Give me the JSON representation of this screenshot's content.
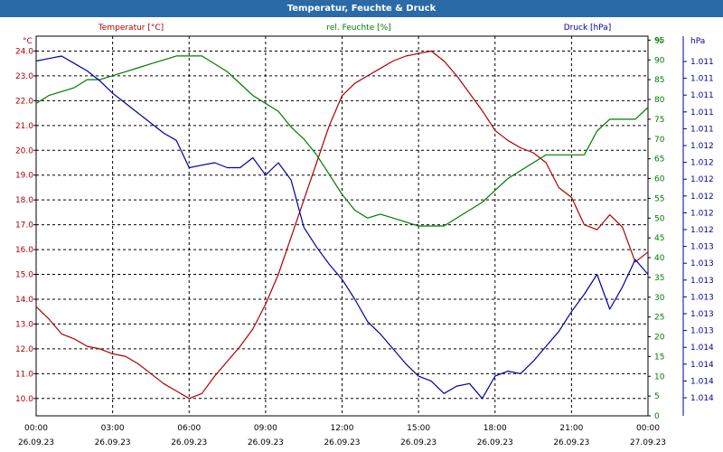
{
  "window": {
    "title": "Temperatur, Feuchte & Druck"
  },
  "chart_data": {
    "type": "line",
    "title": "Temperatur, Feuchte & Druck",
    "colors": {
      "temperature": "#b00000",
      "humidity": "#007a00",
      "pressure": "#0000a0",
      "grid": "#000000",
      "title_bar": "#2a6aa6"
    },
    "grid": true,
    "x_ticks": [
      {
        "time": "00:00",
        "date": "26.09.23"
      },
      {
        "time": "03:00",
        "date": "26.09.23"
      },
      {
        "time": "06:00",
        "date": "26.09.23"
      },
      {
        "time": "09:00",
        "date": "26.09.23"
      },
      {
        "time": "12:00",
        "date": "26.09.23"
      },
      {
        "time": "15:00",
        "date": "26.09.23"
      },
      {
        "time": "18:00",
        "date": "26.09.23"
      },
      {
        "time": "21:00",
        "date": "26.09.23"
      },
      {
        "time": "00:00",
        "date": "27.09.23"
      }
    ],
    "xlim_hours": [
      0,
      24
    ],
    "axes": {
      "left": {
        "label": "Temperatur [°C]",
        "unit": "°C",
        "ylim": [
          9.3,
          24.6
        ],
        "ticks": [
          "10.0",
          "11.0",
          "12.0",
          "13.0",
          "14.0",
          "15.0",
          "16.0",
          "17.0",
          "18.0",
          "19.0",
          "20.0",
          "21.0",
          "22.0",
          "23.0",
          "24.0"
        ]
      },
      "right1": {
        "label": "rel. Feuchte [%]",
        "unit": "%",
        "ylim": [
          0,
          96
        ],
        "ticks": [
          "0",
          "5",
          "10",
          "15",
          "20",
          "25",
          "30",
          "35",
          "40",
          "45",
          "50",
          "55",
          "60",
          "65",
          "70",
          "75",
          "80",
          "85",
          "90",
          "95"
        ]
      },
      "right2": {
        "label": "Druck [hPa]",
        "unit": "hPa",
        "ticks": [
          "1.011",
          "1.011",
          "1.011",
          "1.011",
          "1.011",
          "1.012",
          "1.012",
          "1.012",
          "1.012",
          "1.012",
          "1.012",
          "1.013",
          "1.013",
          "1.013",
          "1.013",
          "1.013",
          "1.013",
          "1.014",
          "1.014",
          "1.014",
          "1.014"
        ]
      }
    },
    "series": [
      {
        "name": "Temperatur [°C]",
        "axis": "left",
        "x": [
          0,
          0.5,
          1,
          1.5,
          2,
          2.5,
          3,
          3.5,
          4,
          4.5,
          5,
          5.5,
          6,
          6.5,
          7,
          7.5,
          8,
          8.5,
          9,
          9.5,
          10,
          10.5,
          11,
          11.5,
          12,
          12.5,
          13,
          13.5,
          14,
          14.5,
          15,
          15.5,
          16,
          16.5,
          17,
          17.5,
          18,
          18.5,
          19,
          19.5,
          20,
          20.5,
          21,
          21.5,
          22,
          22.5,
          23,
          23.5,
          24
        ],
        "y": [
          13.7,
          13.2,
          12.6,
          12.4,
          12.1,
          12.0,
          11.8,
          11.7,
          11.4,
          11.0,
          10.6,
          10.3,
          10.0,
          10.2,
          10.9,
          11.5,
          12.1,
          12.8,
          13.8,
          15.0,
          16.5,
          18.0,
          19.5,
          21.0,
          22.2,
          22.7,
          23.0,
          23.3,
          23.6,
          23.8,
          23.9,
          24.0,
          23.6,
          23.0,
          22.3,
          21.6,
          20.8,
          20.4,
          20.1,
          19.9,
          19.5,
          18.5,
          18.1,
          17.0,
          16.8,
          17.4,
          16.9,
          15.5,
          15.9
        ]
      },
      {
        "name": "rel. Feuchte [%]",
        "axis": "right1",
        "x": [
          0,
          0.5,
          1,
          1.5,
          2,
          2.5,
          3,
          3.5,
          4,
          4.5,
          5,
          5.5,
          6,
          6.5,
          7,
          7.5,
          8,
          8.5,
          9,
          9.5,
          10,
          10.5,
          11,
          11.5,
          12,
          12.5,
          13,
          13.5,
          14,
          14.5,
          15,
          15.5,
          16,
          16.5,
          17,
          17.5,
          18,
          18.5,
          19,
          19.5,
          20,
          20.5,
          21,
          21.5,
          22,
          22.5,
          23,
          23.5,
          24
        ],
        "y": [
          79,
          81,
          82,
          83,
          85,
          85,
          86,
          87,
          88,
          89,
          90,
          91,
          91,
          91,
          89,
          87,
          84,
          81,
          79,
          77,
          73,
          70,
          66,
          61,
          56,
          52,
          50,
          51,
          50,
          49,
          48,
          48,
          48,
          50,
          52,
          54,
          57,
          60,
          62,
          64,
          66,
          66,
          66,
          66,
          72,
          75,
          75,
          75,
          78
        ]
      },
      {
        "name": "Druck [hPa]",
        "axis": "right2",
        "x": [
          0,
          0.5,
          1,
          1.5,
          2,
          2.5,
          3,
          3.5,
          4,
          4.5,
          5,
          5.5,
          6,
          6.5,
          7,
          7.5,
          8,
          8.5,
          9,
          9.5,
          10,
          10.5,
          11,
          11.5,
          12,
          12.5,
          13,
          13.5,
          14,
          14.5,
          15,
          15.5,
          16,
          16.5,
          17,
          17.5,
          18,
          18.5,
          19,
          19.5,
          20,
          20.5,
          21,
          21.5,
          22,
          22.5,
          23,
          23.5,
          24
        ],
        "y": [
          23.6,
          23.7,
          23.8,
          23.5,
          23.2,
          22.8,
          22.3,
          21.9,
          21.5,
          21.1,
          20.7,
          20.4,
          19.3,
          19.4,
          19.5,
          19.3,
          19.3,
          19.7,
          19.0,
          19.5,
          18.8,
          16.9,
          16.1,
          15.4,
          14.8,
          14.0,
          13.1,
          12.6,
          12.0,
          11.4,
          10.9,
          10.7,
          10.2,
          10.5,
          10.6,
          10.0,
          10.9,
          11.1,
          11.0,
          11.5,
          12.1,
          12.7,
          13.5,
          14.2,
          15.0,
          13.6,
          14.5,
          15.6,
          15.0
        ]
      }
    ]
  }
}
